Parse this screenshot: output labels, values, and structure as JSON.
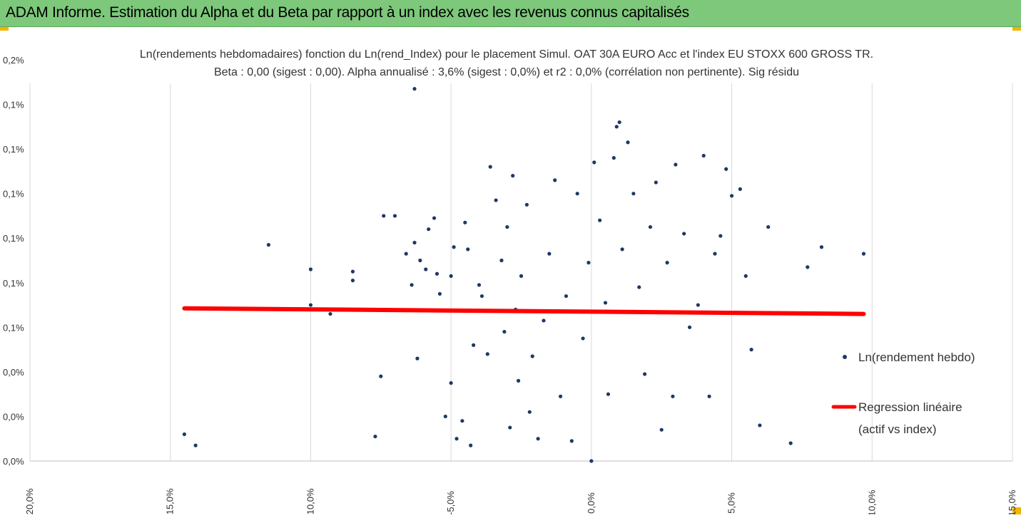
{
  "header": {
    "title": "ADAM Informe. Estimation du Alpha et du Beta par rapport à un index avec les revenus connus capitalisés"
  },
  "colors": {
    "banner": "#7dc87b",
    "points": "#1f3864",
    "regression": "#ff0000",
    "grid": "#d9d9d9"
  },
  "chart_data": {
    "type": "scatter",
    "title_line1": "Ln(rendements hebdomadaires) fonction du Ln(rend_Index) pour le placement Simul. OAT 30A EURO Acc et l'index EU STOXX 600 GROSS TR.",
    "title_line2": "Beta : 0,00 (sigest : 0,00). Alpha annualisé : 3,6% (sigest : 0,0%) et r2 : 0,0% (corrélation non pertinente). Sig résidu",
    "x_ticks": [
      "-20,0%",
      "-15,0%",
      "-10,0%",
      "-5,0%",
      "0,0%",
      "5,0%",
      "10,0%",
      "15,0%"
    ],
    "x_tick_values": [
      -20,
      -15,
      -10,
      -5,
      0,
      5,
      10,
      15
    ],
    "y_ticks": [
      "0,0%",
      "0,0%",
      "0,0%",
      "0,1%",
      "0,1%",
      "0,1%",
      "0,1%",
      "0,1%",
      "0,1%",
      "0,2%"
    ],
    "y_tick_values": [
      0.0,
      0.02,
      0.04,
      0.06,
      0.08,
      0.1,
      0.12,
      0.14,
      0.16,
      0.18
    ],
    "xlim": [
      -20,
      15
    ],
    "ylim": [
      0.0,
      0.18
    ],
    "grid": "vertical",
    "legend_position": "right",
    "series": [
      {
        "name": "Ln(rendement hebdo)",
        "kind": "points",
        "points": [
          [
            -14.5,
            0.012
          ],
          [
            -14.1,
            0.007
          ],
          [
            -11.5,
            0.097
          ],
          [
            -10.0,
            0.086
          ],
          [
            -10.0,
            0.07
          ],
          [
            -9.3,
            0.066
          ],
          [
            -8.5,
            0.085
          ],
          [
            -8.5,
            0.081
          ],
          [
            -7.7,
            0.011
          ],
          [
            -7.5,
            0.038
          ],
          [
            -7.4,
            0.11
          ],
          [
            -7.0,
            0.11
          ],
          [
            -6.6,
            0.093
          ],
          [
            -6.4,
            0.079
          ],
          [
            -6.3,
            0.098
          ],
          [
            -6.3,
            0.167
          ],
          [
            -6.2,
            0.046
          ],
          [
            -6.1,
            0.09
          ],
          [
            -5.9,
            0.086
          ],
          [
            -5.8,
            0.104
          ],
          [
            -5.6,
            0.109
          ],
          [
            -5.5,
            0.084
          ],
          [
            -5.4,
            0.075
          ],
          [
            -5.2,
            0.02
          ],
          [
            -5.0,
            0.083
          ],
          [
            -5.0,
            0.035
          ],
          [
            -4.9,
            0.096
          ],
          [
            -4.8,
            0.01
          ],
          [
            -4.6,
            0.018
          ],
          [
            -4.5,
            0.107
          ],
          [
            -4.4,
            0.095
          ],
          [
            -4.3,
            0.007
          ],
          [
            -4.2,
            0.052
          ],
          [
            -4.0,
            0.079
          ],
          [
            -3.9,
            0.074
          ],
          [
            -3.7,
            0.048
          ],
          [
            -3.6,
            0.132
          ],
          [
            -3.4,
            0.117
          ],
          [
            -3.2,
            0.09
          ],
          [
            -3.0,
            0.105
          ],
          [
            -2.9,
            0.015
          ],
          [
            -2.8,
            0.128
          ],
          [
            -2.7,
            0.068
          ],
          [
            -2.5,
            0.083
          ],
          [
            -2.3,
            0.115
          ],
          [
            -2.1,
            0.047
          ],
          [
            -1.9,
            0.01
          ],
          [
            -1.7,
            0.063
          ],
          [
            -1.5,
            0.093
          ],
          [
            -1.3,
            0.126
          ],
          [
            -1.1,
            0.029
          ],
          [
            -0.9,
            0.074
          ],
          [
            -0.7,
            0.009
          ],
          [
            -0.5,
            0.12
          ],
          [
            -0.3,
            0.055
          ],
          [
            -0.1,
            0.089
          ],
          [
            0.0,
            0.0
          ],
          [
            0.1,
            0.134
          ],
          [
            0.3,
            0.108
          ],
          [
            0.5,
            0.071
          ],
          [
            0.6,
            0.03
          ],
          [
            0.8,
            0.136
          ],
          [
            0.9,
            0.15
          ],
          [
            1.0,
            0.152
          ],
          [
            1.1,
            0.095
          ],
          [
            1.3,
            0.143
          ],
          [
            1.5,
            0.12
          ],
          [
            1.7,
            0.078
          ],
          [
            1.9,
            0.039
          ],
          [
            2.1,
            0.105
          ],
          [
            2.3,
            0.125
          ],
          [
            2.5,
            0.014
          ],
          [
            2.7,
            0.089
          ],
          [
            2.9,
            0.029
          ],
          [
            3.0,
            0.133
          ],
          [
            3.3,
            0.102
          ],
          [
            3.5,
            0.06
          ],
          [
            3.8,
            0.07
          ],
          [
            4.0,
            0.137
          ],
          [
            4.2,
            0.029
          ],
          [
            4.4,
            0.093
          ],
          [
            4.6,
            0.101
          ],
          [
            4.8,
            0.131
          ],
          [
            5.0,
            0.119
          ],
          [
            5.3,
            0.122
          ],
          [
            5.5,
            0.083
          ],
          [
            5.7,
            0.05
          ],
          [
            6.0,
            0.016
          ],
          [
            6.3,
            0.105
          ],
          [
            7.1,
            0.008
          ],
          [
            7.7,
            0.087
          ],
          [
            8.2,
            0.096
          ],
          [
            9.7,
            0.093
          ],
          [
            -3.1,
            0.058
          ],
          [
            -2.6,
            0.036
          ],
          [
            -2.2,
            0.022
          ]
        ]
      },
      {
        "name": "Regression linéaire",
        "name_line2": "(actif vs index)",
        "kind": "line",
        "points": [
          [
            -14.5,
            0.0685
          ],
          [
            9.7,
            0.066
          ]
        ]
      }
    ]
  }
}
